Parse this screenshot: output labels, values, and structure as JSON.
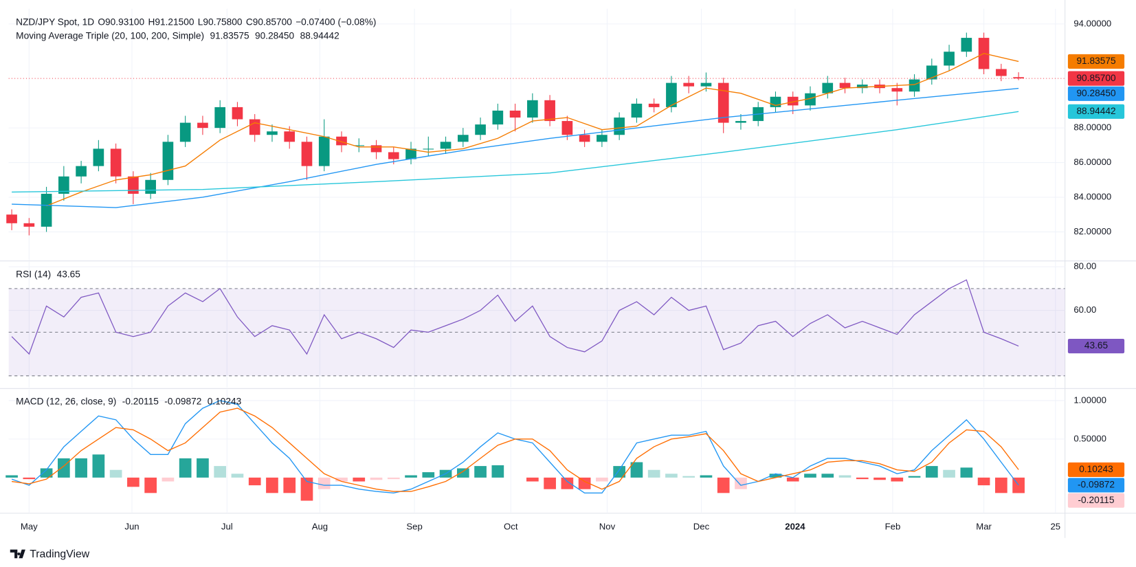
{
  "header": {
    "title": "NZD/JPY Spot, 1D",
    "ohlc": [
      {
        "key": "O",
        "value": "90.93100"
      },
      {
        "key": "H",
        "value": "91.21500"
      },
      {
        "key": "L",
        "value": "90.75800"
      },
      {
        "key": "C",
        "value": "90.85700"
      }
    ],
    "change": "−0.07400 (−0.08%)"
  },
  "footer": {
    "brand": "TradingView"
  },
  "chart_data": [
    {
      "type": "candlestick",
      "title": "Moving Average Triple (20, 100, 200, Simple)",
      "up_color": "#089981",
      "down_color": "#f23645",
      "last_label": "90.85700",
      "xlim": [
        -4.7,
        238.7
      ],
      "ylim": [
        80.364,
        94.881
      ],
      "yticks": [
        {
          "value": 82,
          "label": "82.00000"
        },
        {
          "value": 84,
          "label": "84.00000"
        },
        {
          "value": 86,
          "label": "86.00000"
        },
        {
          "value": 88,
          "label": "88.00000"
        },
        {
          "value": 94,
          "label": "94.00000"
        }
      ],
      "grid": true,
      "x": [
        -4,
        0,
        4,
        8,
        12,
        16,
        20,
        24,
        28,
        32,
        36,
        40,
        44,
        48,
        52,
        56,
        60,
        64,
        68,
        72,
        76,
        80,
        84,
        88,
        92,
        96,
        100,
        104,
        108,
        112,
        116,
        120,
        124,
        128,
        132,
        136,
        140,
        144,
        148,
        152,
        156,
        160,
        164,
        168,
        172,
        176,
        180,
        184,
        188,
        192,
        196,
        200,
        204,
        208,
        212,
        216,
        220,
        224,
        228
      ],
      "ohlc": [
        [
          83.0,
          83.3,
          82.1,
          82.5
        ],
        [
          82.5,
          82.8,
          81.8,
          82.3
        ],
        [
          82.3,
          84.6,
          82.0,
          84.2
        ],
        [
          84.2,
          85.8,
          83.8,
          85.2
        ],
        [
          85.2,
          86.1,
          84.8,
          85.8
        ],
        [
          85.8,
          87.3,
          85.5,
          86.8
        ],
        [
          86.8,
          87.1,
          84.8,
          85.2
        ],
        [
          85.2,
          85.5,
          83.6,
          84.2
        ],
        [
          84.2,
          85.4,
          83.9,
          85.0
        ],
        [
          85.0,
          87.6,
          84.7,
          87.2
        ],
        [
          87.2,
          88.7,
          86.9,
          88.3
        ],
        [
          88.3,
          88.7,
          87.6,
          88.0
        ],
        [
          88.0,
          89.6,
          87.7,
          89.2
        ],
        [
          89.2,
          89.5,
          88.1,
          88.5
        ],
        [
          88.5,
          88.8,
          87.2,
          87.6
        ],
        [
          87.6,
          88.2,
          87.2,
          87.8
        ],
        [
          87.8,
          88.1,
          86.8,
          87.2
        ],
        [
          87.2,
          87.5,
          85.0,
          85.8
        ],
        [
          85.8,
          88.5,
          85.5,
          87.5
        ],
        [
          87.5,
          87.8,
          86.6,
          87.0
        ],
        [
          87.0,
          87.4,
          86.6,
          87.0
        ],
        [
          87.0,
          87.3,
          86.2,
          86.6
        ],
        [
          86.6,
          86.9,
          85.9,
          86.2
        ],
        [
          86.2,
          87.2,
          85.9,
          86.8
        ],
        [
          86.8,
          87.5,
          86.4,
          86.8
        ],
        [
          86.8,
          87.5,
          86.5,
          87.2
        ],
        [
          87.2,
          88.0,
          86.9,
          87.6
        ],
        [
          87.6,
          88.6,
          87.3,
          88.2
        ],
        [
          88.2,
          89.4,
          87.9,
          89.0
        ],
        [
          89.0,
          89.4,
          87.8,
          88.6
        ],
        [
          88.6,
          90.0,
          88.3,
          89.6
        ],
        [
          89.6,
          89.9,
          88.1,
          88.4
        ],
        [
          88.4,
          88.7,
          87.3,
          87.6
        ],
        [
          87.6,
          87.9,
          86.9,
          87.2
        ],
        [
          87.2,
          87.9,
          86.9,
          87.6
        ],
        [
          87.6,
          88.9,
          87.3,
          88.6
        ],
        [
          88.6,
          89.7,
          88.3,
          89.4
        ],
        [
          89.4,
          89.7,
          88.9,
          89.2
        ],
        [
          89.2,
          91.0,
          88.9,
          90.6
        ],
        [
          90.6,
          91.0,
          90.0,
          90.4
        ],
        [
          90.4,
          91.2,
          90.1,
          90.6
        ],
        [
          90.6,
          90.9,
          87.7,
          88.3
        ],
        [
          88.3,
          88.8,
          87.9,
          88.4
        ],
        [
          88.4,
          89.5,
          88.1,
          89.2
        ],
        [
          89.2,
          90.1,
          88.9,
          89.8
        ],
        [
          89.8,
          90.1,
          88.8,
          89.3
        ],
        [
          89.3,
          90.4,
          89.0,
          90.0
        ],
        [
          90.0,
          91.0,
          89.7,
          90.6
        ],
        [
          90.6,
          90.9,
          90.0,
          90.3
        ],
        [
          90.3,
          90.8,
          90.0,
          90.5
        ],
        [
          90.5,
          90.8,
          90.0,
          90.3
        ],
        [
          90.3,
          90.6,
          89.3,
          90.1
        ],
        [
          90.1,
          91.1,
          89.8,
          90.8
        ],
        [
          90.8,
          92.0,
          90.5,
          91.6
        ],
        [
          91.6,
          92.8,
          91.3,
          92.4
        ],
        [
          92.4,
          93.5,
          92.1,
          93.2
        ],
        [
          93.2,
          93.5,
          91.1,
          91.4
        ],
        [
          91.4,
          91.7,
          90.7,
          91.0
        ],
        [
          90.931,
          91.215,
          90.758,
          90.857
        ]
      ],
      "overlays": [
        {
          "color": "#f57c00",
          "last_label": "91.83575",
          "x": [
            4,
            12,
            20,
            28,
            36,
            44,
            52,
            60,
            68,
            76,
            84,
            92,
            100,
            108,
            116,
            124,
            132,
            140,
            148,
            156,
            164,
            172,
            180,
            188,
            196,
            204,
            212,
            220,
            228
          ],
          "values": [
            83.5,
            84.3,
            85.0,
            85.3,
            85.8,
            87.3,
            88.3,
            87.9,
            87.5,
            86.9,
            86.9,
            86.6,
            86.8,
            87.4,
            88.4,
            88.6,
            87.9,
            88.1,
            89.3,
            90.3,
            90.0,
            89.3,
            89.7,
            90.3,
            90.4,
            90.5,
            91.3,
            92.3,
            91.83575
          ]
        },
        {
          "color": "#2196f3",
          "last_label": "90.28450",
          "x": [
            -4,
            20,
            40,
            60,
            80,
            100,
            120,
            140,
            160,
            180,
            200,
            228
          ],
          "values": [
            83.6,
            83.4,
            84.0,
            84.9,
            85.9,
            86.7,
            87.4,
            88.0,
            88.6,
            89.1,
            89.6,
            90.2845
          ]
        },
        {
          "color": "#26c6da",
          "last_label": "88.94442",
          "x": [
            -4,
            40,
            80,
            120,
            160,
            200,
            228
          ],
          "values": [
            84.3,
            84.45,
            84.9,
            85.4,
            86.6,
            87.9,
            88.94442
          ]
        }
      ]
    },
    {
      "type": "line",
      "title": "RSI (14)",
      "color": "#7e57c2",
      "last_label": "43.65",
      "bands": [
        30,
        50,
        70
      ],
      "xlim": [
        -4.7,
        238.7
      ],
      "ylim": [
        24.67,
        82.33
      ],
      "yticks": [
        {
          "value": 60,
          "label": "60.00"
        },
        {
          "value": 80,
          "label": "80.00"
        }
      ],
      "x": [
        -4,
        0,
        4,
        8,
        12,
        16,
        20,
        24,
        28,
        32,
        36,
        40,
        44,
        48,
        52,
        56,
        60,
        64,
        68,
        72,
        76,
        80,
        84,
        88,
        92,
        96,
        100,
        104,
        108,
        112,
        116,
        120,
        124,
        128,
        132,
        136,
        140,
        144,
        148,
        152,
        156,
        160,
        164,
        168,
        172,
        176,
        180,
        184,
        188,
        192,
        196,
        200,
        204,
        208,
        212,
        216,
        220,
        224,
        228
      ],
      "values": [
        48,
        40,
        62,
        57,
        66,
        68,
        50,
        48,
        50,
        62,
        68,
        64,
        70,
        57,
        48,
        53,
        51,
        40,
        58,
        47,
        50,
        47,
        43,
        51,
        50,
        53,
        56,
        60,
        67,
        55,
        62,
        48,
        43,
        41,
        46,
        60,
        64,
        58,
        66,
        60,
        62,
        42,
        45,
        53,
        55,
        48,
        54,
        58,
        52,
        55,
        52,
        49,
        58,
        64,
        70,
        74,
        50,
        47,
        43.65
      ]
    },
    {
      "type": "macd",
      "title": "MACD (12, 26, close, 9)",
      "xlim": [
        -4.7,
        238.7
      ],
      "ylim": [
        -0.453,
        1.142
      ],
      "yticks": [
        {
          "value": 0.5,
          "label": "0.50000"
        },
        {
          "value": 1,
          "label": "1.00000"
        }
      ],
      "xticks": [
        {
          "value": 0,
          "label": "May"
        },
        {
          "value": 23.7,
          "label": "Jun"
        },
        {
          "value": 45.6,
          "label": "Jul"
        },
        {
          "value": 67,
          "label": "Aug"
        },
        {
          "value": 88.8,
          "label": "Sep"
        },
        {
          "value": 111,
          "label": "Oct"
        },
        {
          "value": 133.2,
          "label": "Nov"
        },
        {
          "value": 154.9,
          "label": "Dec"
        },
        {
          "value": 176.5,
          "label": "2024",
          "bold": true
        },
        {
          "value": 199,
          "label": "Feb"
        },
        {
          "value": 220,
          "label": "Mar"
        },
        {
          "value": 236.5,
          "label": "25"
        }
      ],
      "x": [
        -4,
        0,
        4,
        8,
        12,
        16,
        20,
        24,
        28,
        32,
        36,
        40,
        44,
        48,
        52,
        56,
        60,
        64,
        68,
        72,
        76,
        80,
        84,
        88,
        92,
        96,
        100,
        104,
        108,
        112,
        116,
        120,
        124,
        128,
        132,
        136,
        140,
        144,
        148,
        152,
        156,
        160,
        164,
        168,
        172,
        176,
        180,
        184,
        188,
        192,
        196,
        200,
        204,
        208,
        212,
        216,
        220,
        224,
        228
      ],
      "histogram": {
        "last_label": "-0.20115",
        "colors": [
          "#26a69a",
          "#b2dfdb",
          "#ff5252",
          "#ffcdd2"
        ],
        "values": [
          0.03,
          -0.02,
          0.12,
          0.25,
          0.25,
          0.3,
          0.1,
          -0.12,
          -0.2,
          -0.05,
          0.25,
          0.25,
          0.15,
          0.05,
          -0.1,
          -0.2,
          -0.2,
          -0.3,
          -0.15,
          -0.05,
          -0.05,
          -0.03,
          -0.02,
          0.03,
          0.07,
          0.1,
          0.12,
          0.15,
          0.16,
          0.0,
          -0.05,
          -0.15,
          -0.15,
          -0.15,
          -0.05,
          0.15,
          0.2,
          0.1,
          0.05,
          0.02,
          0.03,
          -0.2,
          -0.15,
          0.0,
          0.05,
          -0.05,
          0.05,
          0.05,
          0.03,
          -0.02,
          -0.03,
          -0.05,
          0.02,
          0.15,
          0.1,
          0.13,
          -0.1,
          -0.2,
          -0.20115
        ]
      },
      "series": [
        {
          "color": "#2196f3",
          "last_label": "-0.09872",
          "values": [
            -0.02,
            -0.1,
            0.1,
            0.4,
            0.6,
            0.8,
            0.75,
            0.5,
            0.3,
            0.3,
            0.7,
            0.9,
            1.0,
            0.95,
            0.7,
            0.45,
            0.25,
            -0.05,
            -0.1,
            -0.1,
            -0.15,
            -0.18,
            -0.2,
            -0.15,
            -0.05,
            0.05,
            0.2,
            0.4,
            0.58,
            0.5,
            0.45,
            0.2,
            -0.05,
            -0.2,
            -0.2,
            0.1,
            0.45,
            0.5,
            0.55,
            0.55,
            0.6,
            0.15,
            -0.1,
            -0.05,
            0.05,
            0.0,
            0.15,
            0.25,
            0.25,
            0.2,
            0.15,
            0.05,
            0.1,
            0.35,
            0.55,
            0.75,
            0.5,
            0.2,
            -0.09872
          ]
        },
        {
          "color": "#ff6d00",
          "last_label": "0.10243",
          "values": [
            -0.05,
            -0.08,
            -0.02,
            0.15,
            0.35,
            0.5,
            0.65,
            0.62,
            0.5,
            0.35,
            0.45,
            0.65,
            0.85,
            0.9,
            0.8,
            0.65,
            0.45,
            0.25,
            0.05,
            -0.05,
            -0.1,
            -0.15,
            -0.18,
            -0.18,
            -0.12,
            -0.05,
            0.08,
            0.25,
            0.42,
            0.5,
            0.5,
            0.35,
            0.1,
            -0.05,
            -0.15,
            -0.05,
            0.25,
            0.4,
            0.5,
            0.53,
            0.57,
            0.35,
            0.05,
            -0.05,
            0.0,
            0.05,
            0.1,
            0.2,
            0.22,
            0.22,
            0.18,
            0.1,
            0.08,
            0.2,
            0.45,
            0.62,
            0.6,
            0.4,
            0.10243
          ]
        }
      ]
    }
  ]
}
